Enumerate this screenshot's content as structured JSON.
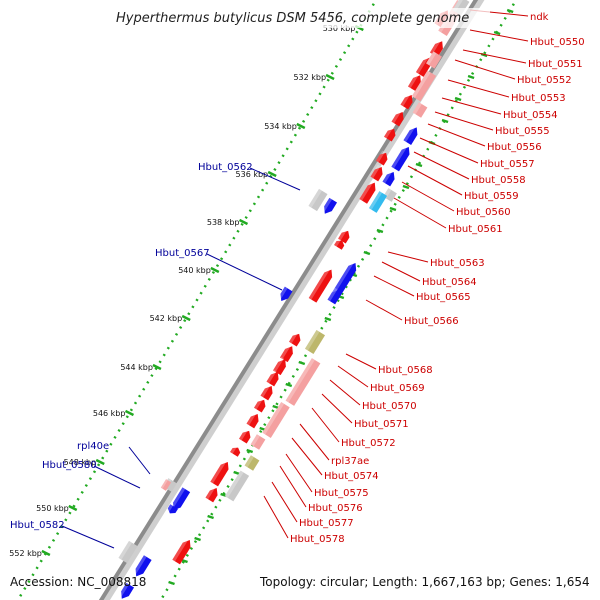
{
  "title": "Hyperthermus butylicus DSM 5456, complete genome",
  "footer": {
    "accession": "Accession: NC_008818",
    "topology": "Topology: circular; Length: 1,667,163 bp; Genes: 1,654"
  },
  "ticks": [
    "530 kbp",
    "532 kbp",
    "534 kbp",
    "536 kbp",
    "538 kbp",
    "540 kbp",
    "542 kbp",
    "544 kbp",
    "546 kbp",
    "548 kbp",
    "550 kbp",
    "552 kbp"
  ],
  "reverse_labels": [
    "ndk",
    "Hbut_0550",
    "Hbut_0551",
    "Hbut_0552",
    "Hbut_0553",
    "Hbut_0554",
    "Hbut_0555",
    "Hbut_0556",
    "Hbut_0557",
    "Hbut_0558",
    "Hbut_0559",
    "Hbut_0560",
    "Hbut_0561",
    "Hbut_0563",
    "Hbut_0564",
    "Hbut_0565",
    "Hbut_0566",
    "Hbut_0568",
    "Hbut_0569",
    "Hbut_0570",
    "Hbut_0571",
    "Hbut_0572",
    "rpl37ae",
    "Hbut_0574",
    "Hbut_0575",
    "Hbut_0576",
    "Hbut_0577",
    "Hbut_0578"
  ],
  "forward_labels": [
    "Hbut_0562",
    "Hbut_0567",
    "rpl40e",
    "Hbut_0580",
    "Hbut_0582"
  ],
  "colors": {
    "reverse_cds": "#ee1111",
    "forward_cds": "#1111ee",
    "reverse_match": "#f4a0a0",
    "grey_match": "#c8c8c8",
    "olive_match": "#bdb76b",
    "cyan_match": "#33bbee",
    "backbone": "#999999",
    "tick": "#22aa22"
  }
}
